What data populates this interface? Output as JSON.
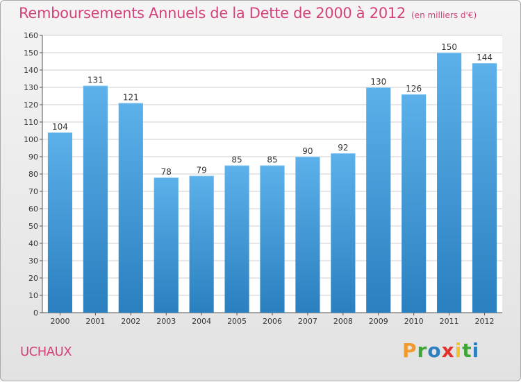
{
  "header": {
    "title": "Remboursements Annuels de la Dette de 2000 à 2012",
    "unit": "(en milliers d'€)"
  },
  "footer": {
    "commune": "UCHAUX",
    "logo_letters": [
      "P",
      "r",
      "o",
      "x",
      "i",
      "t",
      "i"
    ]
  },
  "colors": {
    "title": "#d4427c",
    "bar_top": "#5cb1ea",
    "bar_bottom": "#2a7fbf",
    "grid": "#cfcfcf"
  },
  "chart_data": {
    "type": "bar",
    "title": "Remboursements Annuels de la Dette de 2000 à 2012",
    "subtitle": "(en milliers d'€)",
    "xlabel": "",
    "ylabel": "",
    "ylim": [
      0,
      160
    ],
    "yticks": [
      0,
      10,
      20,
      30,
      40,
      50,
      60,
      70,
      80,
      90,
      100,
      110,
      120,
      130,
      140,
      150,
      160
    ],
    "grid": true,
    "categories": [
      "2000",
      "2001",
      "2002",
      "2003",
      "2004",
      "2005",
      "2006",
      "2007",
      "2008",
      "2009",
      "2010",
      "2011",
      "2012"
    ],
    "values": [
      104,
      131,
      121,
      78,
      79,
      85,
      85,
      90,
      92,
      130,
      126,
      150,
      144
    ]
  }
}
